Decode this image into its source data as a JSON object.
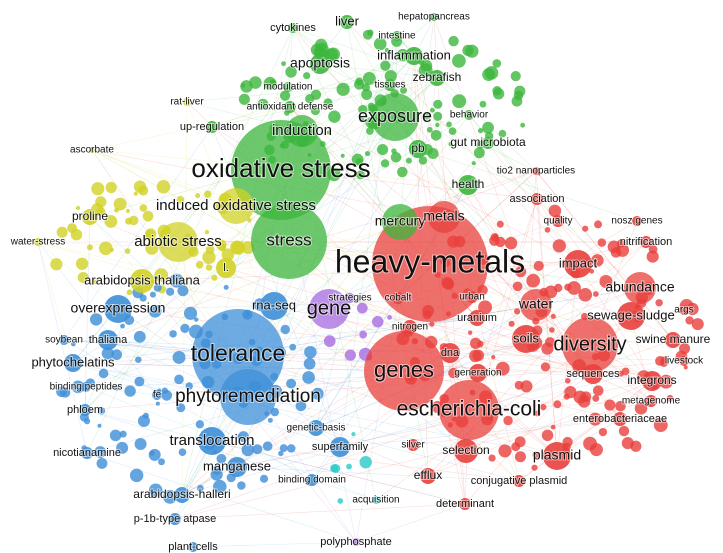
{
  "nodes": [
    {
      "label": "cytokines"
    },
    {
      "label": "liver"
    },
    {
      "label": "hepatopancreas"
    },
    {
      "label": "intestine"
    },
    {
      "label": "inflammation"
    },
    {
      "label": "apoptosis"
    },
    {
      "label": "zebrafish"
    },
    {
      "label": "modulation"
    },
    {
      "label": "tissues"
    },
    {
      "label": "rat-liver"
    },
    {
      "label": "antioxidant defense"
    },
    {
      "label": "exposure"
    },
    {
      "label": "behavior"
    },
    {
      "label": "up-regulation"
    },
    {
      "label": "induction"
    },
    {
      "label": "gut microbiota"
    },
    {
      "label": "pb"
    },
    {
      "label": "ascorbate"
    },
    {
      "label": "oxidative stress"
    },
    {
      "label": "tio2 nanoparticles"
    },
    {
      "label": "health"
    },
    {
      "label": "association"
    },
    {
      "label": "induced oxidative stress"
    },
    {
      "label": "mercury"
    },
    {
      "label": "metals"
    },
    {
      "label": "quality"
    },
    {
      "label": "nosz genes"
    },
    {
      "label": "proline"
    },
    {
      "label": "water-stress"
    },
    {
      "label": "abiotic stress"
    },
    {
      "label": "stress"
    },
    {
      "label": "nitrification"
    },
    {
      "label": "heavy-metals"
    },
    {
      "label": "impact"
    },
    {
      "label": "l."
    },
    {
      "label": "arabidopsis thaliana"
    },
    {
      "label": "abundance"
    },
    {
      "label": "rna-seq"
    },
    {
      "label": "gene"
    },
    {
      "label": "strategies"
    },
    {
      "label": "cobalt"
    },
    {
      "label": "urban"
    },
    {
      "label": "water"
    },
    {
      "label": "uranium"
    },
    {
      "label": "args"
    },
    {
      "label": "overexpression"
    },
    {
      "label": "sewage-sludge"
    },
    {
      "label": "nitrogen"
    },
    {
      "label": "soybean"
    },
    {
      "label": "thaliana"
    },
    {
      "label": "soils"
    },
    {
      "label": "diversity"
    },
    {
      "label": "swine manure"
    },
    {
      "label": "phytochelatins"
    },
    {
      "label": "tolerance"
    },
    {
      "label": "dna"
    },
    {
      "label": "genes"
    },
    {
      "label": "livestock"
    },
    {
      "label": "sequences"
    },
    {
      "label": "binding peptides"
    },
    {
      "label": "generation"
    },
    {
      "label": "integrons"
    },
    {
      "label": "fe"
    },
    {
      "label": "phytoremediation"
    },
    {
      "label": "metagenome"
    },
    {
      "label": "phloem"
    },
    {
      "label": "escherichia-coli"
    },
    {
      "label": "enterobacteriaceae"
    },
    {
      "label": "translocation"
    },
    {
      "label": "genetic-basis"
    },
    {
      "label": "silver"
    },
    {
      "label": "nicotianamine"
    },
    {
      "label": "selection"
    },
    {
      "label": "superfamily"
    },
    {
      "label": "plasmid"
    },
    {
      "label": "manganese"
    },
    {
      "label": "efflux"
    },
    {
      "label": "conjugative plasmid"
    },
    {
      "label": "arabidopsis-halleri"
    },
    {
      "label": "binding domain"
    },
    {
      "label": "acquisition"
    },
    {
      "label": "determinant"
    },
    {
      "label": "p-1b-type atpase"
    },
    {
      "label": "plant-cells"
    },
    {
      "label": "polyphosphate"
    }
  ]
}
